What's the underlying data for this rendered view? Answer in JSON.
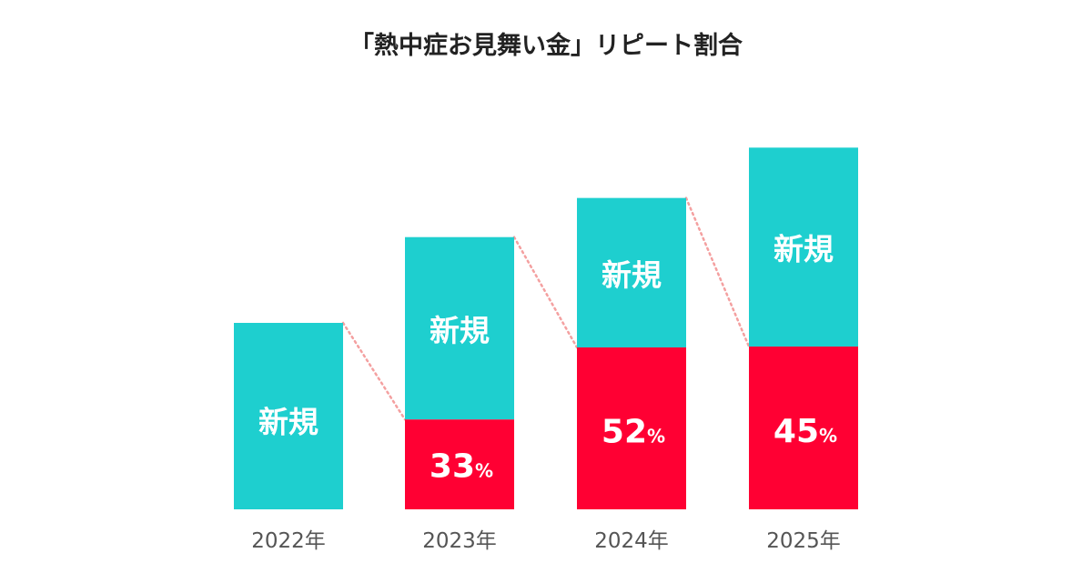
{
  "chart_data": {
    "type": "bar",
    "title": "「熱中症お見舞い金」リピート割合",
    "categories": [
      "2022年",
      "2023年",
      "2024年",
      "2025年"
    ],
    "series": [
      {
        "name": "新規",
        "values": [
          100,
          67,
          48,
          55
        ]
      },
      {
        "values": [
          0,
          33,
          52,
          45
        ]
      }
    ],
    "bar_totals": [
      100,
      146,
      167,
      194
    ],
    "repeat_labels": [
      "",
      "33",
      "52",
      "45"
    ],
    "segment_label": "新規",
    "percent_sign": "%",
    "colors": {
      "new": "#1ECFCF",
      "repeat": "#FF0033",
      "connector": "#F4A0A0"
    },
    "connector_style": "dotted",
    "grid": false,
    "legend": "none"
  }
}
